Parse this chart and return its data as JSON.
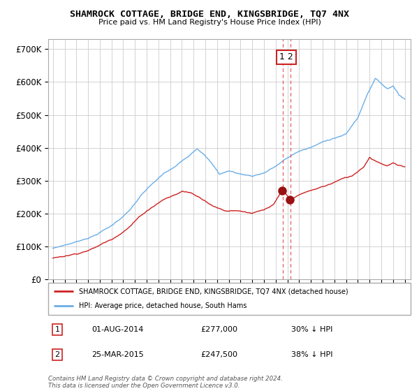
{
  "title": "SHAMROCK COTTAGE, BRIDGE END, KINGSBRIDGE, TQ7 4NX",
  "subtitle": "Price paid vs. HM Land Registry's House Price Index (HPI)",
  "legend_line1": "SHAMROCK COTTAGE, BRIDGE END, KINGSBRIDGE, TQ7 4NX (detached house)",
  "legend_line2": "HPI: Average price, detached house, South Hams",
  "footer": "Contains HM Land Registry data © Crown copyright and database right 2024.\nThis data is licensed under the Open Government Licence v3.0.",
  "sale1_label": "1",
  "sale1_date": "01-AUG-2014",
  "sale1_price": "£277,000",
  "sale1_hpi": "30% ↓ HPI",
  "sale1_year": 2014.583,
  "sale1_price_val": 277000,
  "sale2_label": "2",
  "sale2_date": "25-MAR-2015",
  "sale2_price": "£247,500",
  "sale2_hpi": "38% ↓ HPI",
  "sale2_year": 2015.23,
  "sale2_price_val": 247500,
  "hpi_color": "#6aaee8",
  "price_color": "#cc2222",
  "marker_color": "#991111",
  "vline_color": "#dd4444",
  "background_color": "#ffffff",
  "grid_color": "#cccccc",
  "ylim": [
    0,
    730000
  ],
  "xlim_start": 1994.6,
  "xlim_end": 2025.5,
  "yticks": [
    0,
    100000,
    200000,
    300000,
    400000,
    500000,
    600000,
    700000
  ],
  "ytick_labels": [
    "£0",
    "£100K",
    "£200K",
    "£300K",
    "£400K",
    "£500K",
    "£600K",
    "£700K"
  ]
}
